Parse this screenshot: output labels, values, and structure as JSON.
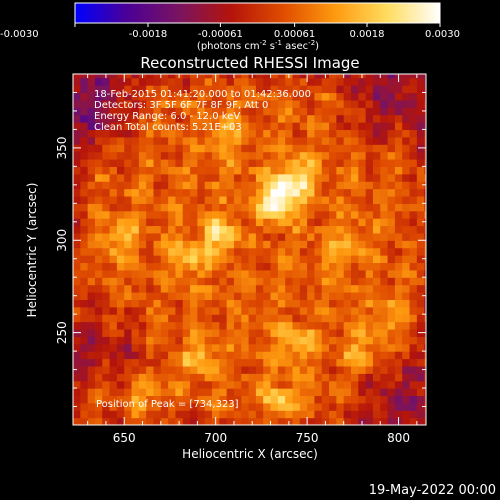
{
  "chart_data": {
    "type": "heatmap",
    "title": "Reconstructed RHESSI Image",
    "colorbar": {
      "range": [
        -0.003,
        0.003
      ],
      "ticks": [
        "-0.0030",
        "-0.0018",
        "-0.00061",
        "0.00061",
        "0.0018",
        "0.0030"
      ],
      "unit_label": "(photons cm",
      "unit_sup1": "-2",
      "unit_mid": " s",
      "unit_sup2": "-1",
      "unit_mid2": " asec",
      "unit_sup3": "-2",
      "unit_end": ")",
      "colormap": [
        "#0000ff",
        "#4b0096",
        "#7a1460",
        "#b4140a",
        "#e04d00",
        "#ff9b10",
        "#ffdd60",
        "#ffffff"
      ]
    },
    "xlabel": "Heliocentric X (arcsec)",
    "ylabel": "Heliocentric Y (arcsec)",
    "xlim": [
      622,
      815
    ],
    "ylim": [
      200,
      390
    ],
    "xticks": [
      650,
      700,
      750,
      800
    ],
    "yticks": [
      250,
      300,
      350
    ],
    "annotations": [
      "18-Feb-2015 01:41:20.000 to 01:42:36.000",
      "Detectors: 3F 5F 6F 7F 8F 9F, Att 0",
      "Energy Range: 6.0 - 12.0 keV",
      "Clean    Total counts: 5.21E+03"
    ],
    "peak_label": "Position of Peak = [734,323]",
    "peak": [
      734,
      323
    ],
    "sources": [
      {
        "x": 734,
        "y": 323,
        "value": 0.003
      },
      {
        "x": 745,
        "y": 334,
        "value": 0.0018
      },
      {
        "x": 702,
        "y": 303,
        "value": 0.0016
      },
      {
        "x": 685,
        "y": 292,
        "value": 0.0014
      },
      {
        "x": 648,
        "y": 302,
        "value": 0.0012
      },
      {
        "x": 692,
        "y": 235,
        "value": 0.0012
      },
      {
        "x": 745,
        "y": 245,
        "value": 0.0013
      },
      {
        "x": 735,
        "y": 212,
        "value": 0.0014
      },
      {
        "x": 780,
        "y": 240,
        "value": 0.0011
      },
      {
        "x": 795,
        "y": 260,
        "value": 0.001
      },
      {
        "x": 705,
        "y": 355,
        "value": 0.001
      },
      {
        "x": 770,
        "y": 295,
        "value": 0.001
      },
      {
        "x": 660,
        "y": 215,
        "value": 0.0009
      }
    ],
    "background": [
      {
        "x": 632,
        "y": 372,
        "value": -0.0011
      },
      {
        "x": 795,
        "y": 375,
        "value": -0.0009
      },
      {
        "x": 640,
        "y": 242,
        "value": -0.0007
      },
      {
        "x": 800,
        "y": 215,
        "value": -0.0008
      }
    ]
  },
  "footer": {
    "date": "19-May-2022 00:00"
  }
}
